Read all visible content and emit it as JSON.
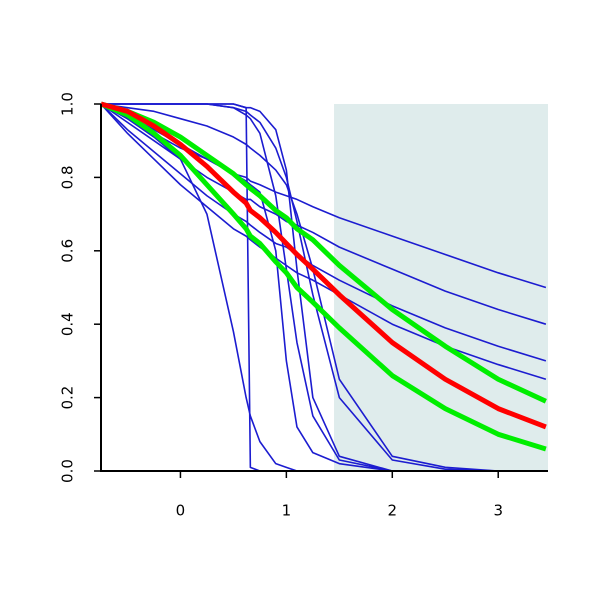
{
  "chart_data": {
    "type": "line",
    "x": [
      -0.75,
      -0.5,
      -0.25,
      0,
      0.25,
      0.5,
      0.62,
      0.66,
      0.75,
      0.9,
      1,
      1.1,
      1.25,
      1.5,
      2,
      2.5,
      3,
      3.45
    ],
    "xlim": [
      -0.75,
      3.47
    ],
    "ylim": [
      0,
      1
    ],
    "xticks": [
      0,
      1,
      2,
      3
    ],
    "yticks": [
      {
        "value": 0,
        "label": "0.0"
      },
      {
        "value": 0.2,
        "label": "0.2"
      },
      {
        "value": 0.4,
        "label": "0.4"
      },
      {
        "value": 0.6,
        "label": "0.6"
      },
      {
        "value": 0.8,
        "label": "0.8"
      },
      {
        "value": 1,
        "label": "1.0"
      }
    ],
    "shaded_xrange": [
      1.45,
      3.47
    ],
    "shade_color": "#dfecec",
    "series": [
      {
        "color": "#1c1cd0",
        "values": [
          1,
          0.96,
          0.92,
          0.88,
          0.85,
          0.81,
          0.8,
          0.79,
          0.78,
          0.76,
          0.75,
          0.74,
          0.72,
          0.69,
          0.64,
          0.59,
          0.54,
          0.5
        ]
      },
      {
        "color": "#1c1cd0",
        "values": [
          1,
          0.95,
          0.9,
          0.85,
          0.8,
          0.76,
          0.74,
          0.74,
          0.72,
          0.7,
          0.68,
          0.67,
          0.65,
          0.61,
          0.55,
          0.49,
          0.44,
          0.4
        ]
      },
      {
        "color": "#1c1cd0",
        "values": [
          1,
          0.93,
          0.87,
          0.81,
          0.75,
          0.7,
          0.68,
          0.67,
          0.65,
          0.62,
          0.61,
          0.59,
          0.56,
          0.52,
          0.45,
          0.39,
          0.34,
          0.3
        ]
      },
      {
        "color": "#1c1cd0",
        "values": [
          1,
          0.92,
          0.85,
          0.78,
          0.72,
          0.66,
          0.64,
          0.63,
          0.61,
          0.58,
          0.56,
          0.54,
          0.52,
          0.48,
          0.4,
          0.34,
          0.29,
          0.25
        ]
      },
      {
        "color": "#1c1cd0",
        "values": [
          1,
          1,
          1,
          1,
          1,
          1,
          0.99,
          0.01,
          0,
          0,
          0,
          0,
          0,
          0,
          0,
          0,
          0,
          0
        ]
      },
      {
        "color": "#1c1cd0",
        "values": [
          1,
          0.96,
          0.91,
          0.85,
          0.7,
          0.38,
          0.2,
          0.15,
          0.08,
          0.02,
          0.01,
          0,
          0,
          0,
          0,
          0,
          0,
          0
        ]
      },
      {
        "color": "#1c1cd0",
        "values": [
          1,
          1,
          1,
          1,
          1,
          0.99,
          0.97,
          0.96,
          0.92,
          0.75,
          0.55,
          0.35,
          0.15,
          0.03,
          0,
          0,
          0,
          0
        ]
      },
      {
        "color": "#1c1cd0",
        "values": [
          1,
          1,
          1,
          1,
          1,
          1,
          0.99,
          0.99,
          0.98,
          0.93,
          0.82,
          0.55,
          0.2,
          0.04,
          0,
          0,
          0,
          0
        ]
      },
      {
        "color": "#1c1cd0",
        "values": [
          1,
          1,
          1,
          1,
          1,
          0.99,
          0.98,
          0.97,
          0.95,
          0.88,
          0.8,
          0.68,
          0.48,
          0.2,
          0.03,
          0.005,
          0,
          0
        ]
      },
      {
        "color": "#1c1cd0",
        "values": [
          1,
          0.97,
          0.93,
          0.89,
          0.85,
          0.81,
          0.79,
          0.78,
          0.76,
          0.6,
          0.3,
          0.12,
          0.05,
          0.02,
          0,
          0,
          0,
          0
        ]
      },
      {
        "color": "#1c1cd0",
        "values": [
          1,
          0.99,
          0.98,
          0.96,
          0.94,
          0.91,
          0.89,
          0.88,
          0.86,
          0.82,
          0.78,
          0.7,
          0.55,
          0.25,
          0.04,
          0.01,
          0,
          0
        ]
      },
      {
        "color": "#00ee00",
        "values": [
          1,
          0.98,
          0.95,
          0.91,
          0.86,
          0.81,
          0.78,
          0.77,
          0.75,
          0.71,
          0.69,
          0.66,
          0.63,
          0.56,
          0.44,
          0.34,
          0.25,
          0.19
        ]
      },
      {
        "color": "#00ee00",
        "values": [
          1,
          0.97,
          0.92,
          0.86,
          0.78,
          0.7,
          0.66,
          0.64,
          0.62,
          0.57,
          0.54,
          0.5,
          0.46,
          0.39,
          0.26,
          0.17,
          0.1,
          0.06
        ]
      },
      {
        "color": "#ff0000",
        "values": [
          1,
          0.98,
          0.94,
          0.89,
          0.83,
          0.76,
          0.73,
          0.71,
          0.69,
          0.65,
          0.62,
          0.59,
          0.55,
          0.48,
          0.35,
          0.25,
          0.17,
          0.12
        ]
      }
    ]
  }
}
